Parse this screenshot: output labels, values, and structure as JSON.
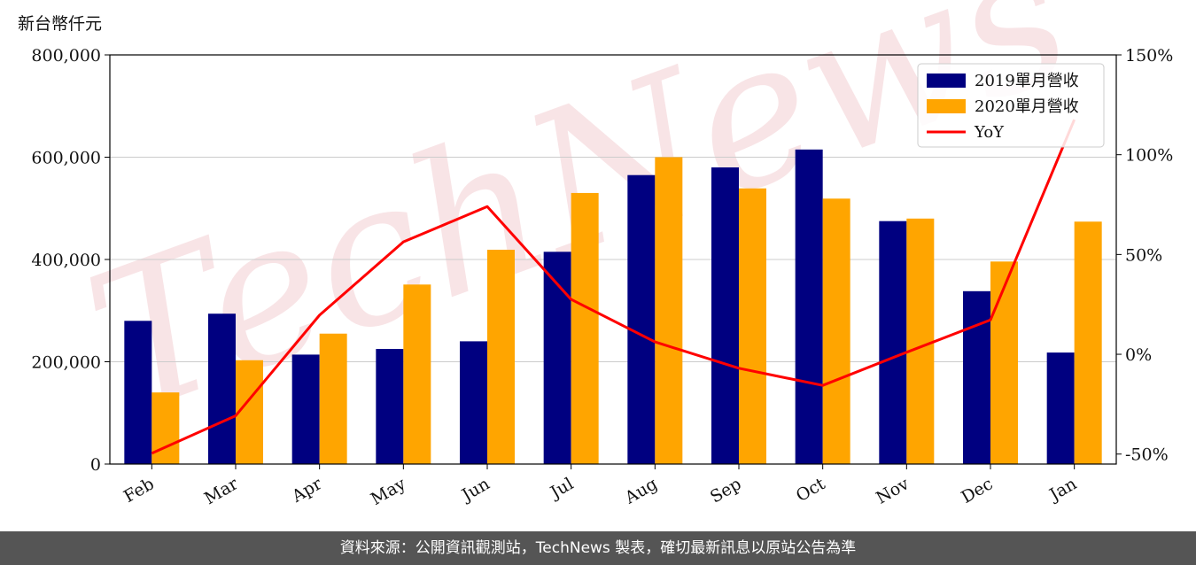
{
  "unit_label": "新台幣仟元",
  "watermark": "TechNews",
  "footer": "資料來源：公開資訊觀測站，TechNews 製表，確切最新訊息以原站公告為準",
  "chart_data": {
    "type": "bar",
    "categories": [
      "Feb",
      "Mar",
      "Apr",
      "May",
      "Jun",
      "Jul",
      "Aug",
      "Sep",
      "Oct",
      "Nov",
      "Dec",
      "Jan"
    ],
    "series": [
      {
        "name": "2019單月營收",
        "type": "bar",
        "axis": "left",
        "color": "#000080",
        "values": [
          280000,
          294000,
          214000,
          225000,
          240000,
          415000,
          565000,
          580000,
          615000,
          475000,
          338000,
          218000
        ]
      },
      {
        "name": "2020單月營收",
        "type": "bar",
        "axis": "left",
        "color": "#FFA500",
        "values": [
          140000,
          203000,
          255000,
          351000,
          419000,
          530000,
          600000,
          539000,
          519000,
          480000,
          396000,
          474000
        ]
      },
      {
        "name": "YoY",
        "type": "line",
        "axis": "right",
        "color": "#FF0000",
        "values": [
          -49.6,
          -30.8,
          19.6,
          56.3,
          74.0,
          27.5,
          6.2,
          -7.0,
          -15.6,
          1.0,
          17.2,
          117.6
        ]
      }
    ],
    "y_left": {
      "ylim": [
        0,
        800000
      ],
      "ticks": [
        0,
        200000,
        400000,
        600000,
        800000
      ],
      "tick_labels": [
        "0",
        "200,000",
        "400,000",
        "600,000",
        "800,000"
      ]
    },
    "y_right": {
      "ylim": [
        -55,
        150
      ],
      "ticks": [
        -50,
        0,
        50,
        100,
        150
      ],
      "tick_labels": [
        "-50%",
        "0%",
        "50%",
        "100%",
        "150%"
      ]
    },
    "grid": "horizontal",
    "legend": "top-right"
  }
}
